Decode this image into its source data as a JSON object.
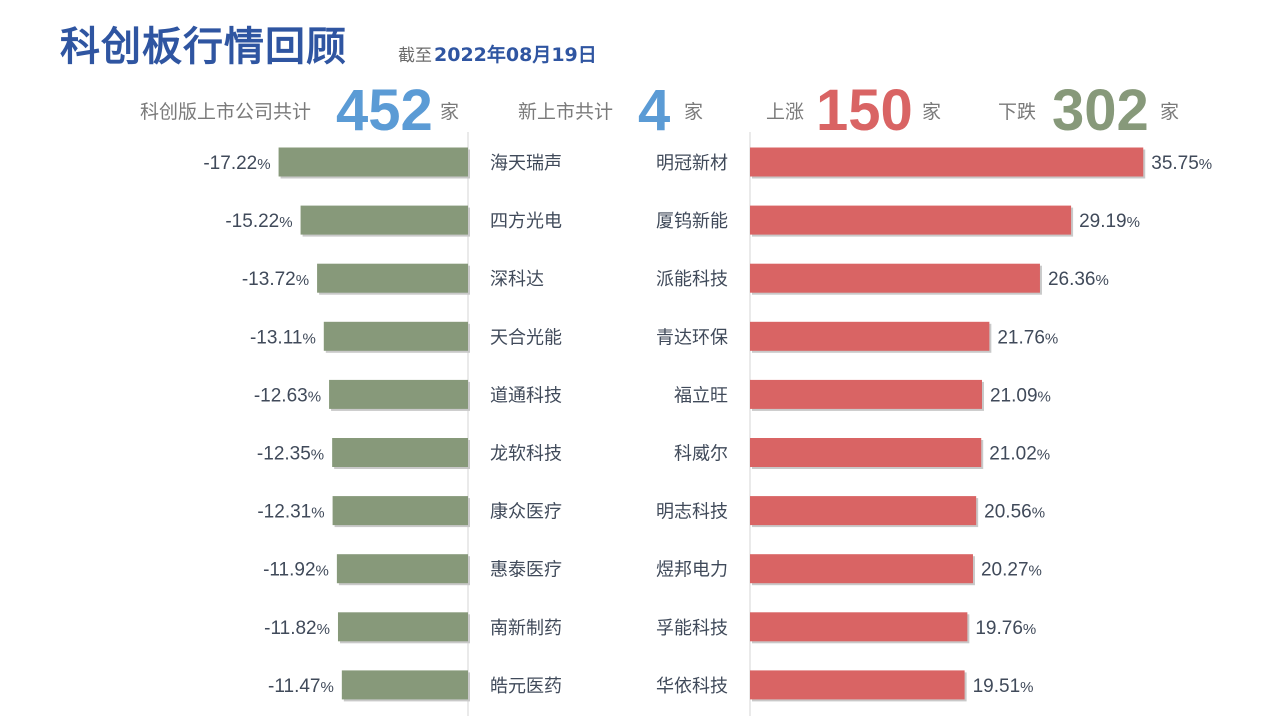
{
  "header": {
    "title": "科创板行情回顾",
    "as_of_label": "截至",
    "as_of_date": "2022年08月19日"
  },
  "stats": {
    "listed": {
      "label": "科创版上市公司共计",
      "value": "452",
      "unit": "家",
      "color": "#5b9bd5"
    },
    "new": {
      "label": "新上市共计",
      "value": "4",
      "unit": "家",
      "color": "#5b9bd5"
    },
    "up": {
      "label": "上涨",
      "value": "150",
      "unit": "家",
      "color": "#d96464"
    },
    "down": {
      "label": "下跌",
      "value": "302",
      "unit": "家",
      "color": "#87997a"
    }
  },
  "colors": {
    "decline": "#87997a",
    "gain": "#d96464"
  },
  "chart_data": [
    {
      "type": "bar",
      "orientation": "horizontal",
      "direction": "leftward",
      "categories": [
        "海天瑞声",
        "四方光电",
        "深科达",
        "天合光能",
        "道通科技",
        "龙软科技",
        "康众医疗",
        "惠泰医疗",
        "南新制药",
        "皓元医药"
      ],
      "values": [
        -17.22,
        -15.22,
        -13.72,
        -13.11,
        -12.63,
        -12.35,
        -12.31,
        -11.92,
        -11.82,
        -11.47
      ],
      "value_labels": [
        "-17.22%",
        "-15.22%",
        "-13.72%",
        "-13.11%",
        "-12.63%",
        "-12.35%",
        "-12.31%",
        "-11.92%",
        "-11.82%",
        "-11.47%"
      ],
      "color": "#87997a"
    },
    {
      "type": "bar",
      "orientation": "horizontal",
      "direction": "rightward",
      "categories": [
        "明冠新材",
        "厦钨新能",
        "派能科技",
        "青达环保",
        "福立旺",
        "科威尔",
        "明志科技",
        "煜邦电力",
        "孚能科技",
        "华依科技"
      ],
      "values": [
        35.75,
        29.19,
        26.36,
        21.76,
        21.09,
        21.02,
        20.56,
        20.27,
        19.76,
        19.51
      ],
      "value_labels": [
        "35.75%",
        "29.19%",
        "26.36%",
        "21.76%",
        "21.09%",
        "21.02%",
        "20.56%",
        "20.27%",
        "19.76%",
        "19.51%"
      ],
      "color": "#d96464"
    }
  ]
}
